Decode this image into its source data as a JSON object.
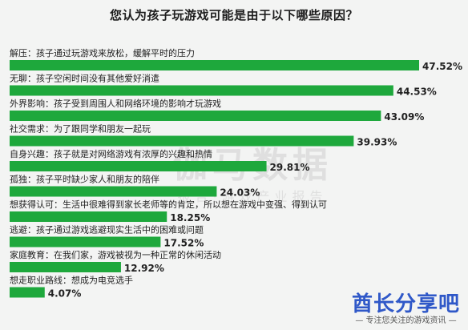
{
  "chart_data": {
    "type": "bar",
    "orientation": "horizontal",
    "title": "您认为孩子玩游戏可能是由于以下哪些原因？",
    "xlabel": "",
    "ylabel": "",
    "grid": false,
    "xlim": [
      0,
      50
    ],
    "bar_color": "#1ea83c",
    "categories": [
      "解压：孩子通过玩游戏来放松，缓解平时的压力",
      "无聊：孩子空闲时间没有其他爱好消遣",
      "外界影响：孩子受到周围人和网络环境的影响才玩游戏",
      "社交需求：为了跟同学和朋友一起玩",
      "自身兴趣：孩子就是对网络游戏有浓厚的兴趣和热情",
      "孤独：孩子平时缺少家人和朋友的陪伴",
      "想获得认可：生活中很难得到家长老师等的肯定，所以想在游戏中变强、得到认可",
      "逃避：孩子通过游戏逃避现实生活中的困难或问题",
      "家庭教育：在我们家，游戏被视为一种正常的休闲活动",
      "想走职业路线：想成为电竞选手"
    ],
    "values": [
      47.52,
      44.53,
      43.09,
      39.93,
      29.81,
      24.03,
      18.25,
      17.52,
      12.92,
      4.07
    ],
    "value_labels": [
      "47.52%",
      "44.53%",
      "43.09%",
      "39.93%",
      "29.81%",
      "24.03%",
      "18.25%",
      "17.52%",
      "12.92%",
      "4.07%"
    ]
  },
  "watermark": {
    "main": "伽马数据",
    "sub": "报告·游戏产业报告"
  },
  "brand": {
    "name": "酋长分享吧",
    "tagline": "— 专注您关注的游戏资讯 —"
  }
}
